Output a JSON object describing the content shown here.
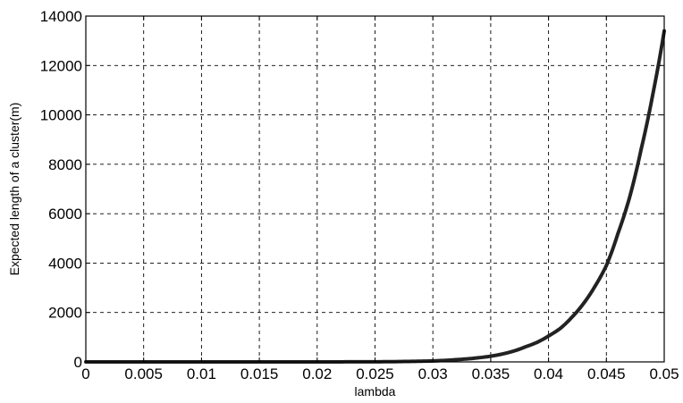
{
  "chart_data": {
    "type": "line",
    "title": "",
    "xlabel": "lambda",
    "ylabel": "Expected length of a cluster(m)",
    "xlim": [
      0,
      0.05
    ],
    "ylim": [
      0,
      14000
    ],
    "grid": true,
    "x_ticks": [
      0,
      0.005,
      0.01,
      0.015,
      0.02,
      0.025,
      0.03,
      0.035,
      0.04,
      0.045,
      0.05
    ],
    "x_tick_labels": [
      "0",
      "0.005",
      "0.01",
      "0.015",
      "0.02",
      "0.025",
      "0.03",
      "0.035",
      "0.04",
      "0.045",
      "0.05"
    ],
    "y_ticks": [
      0,
      2000,
      4000,
      6000,
      8000,
      10000,
      12000,
      14000
    ],
    "y_tick_labels": [
      "0",
      "2000",
      "4000",
      "6000",
      "8000",
      "10000",
      "12000",
      "14000"
    ],
    "series": [
      {
        "color": "#222222",
        "x": [
          0,
          0.005,
          0.01,
          0.015,
          0.02,
          0.025,
          0.028,
          0.03,
          0.032,
          0.034,
          0.035,
          0.036,
          0.037,
          0.038,
          0.039,
          0.04,
          0.041,
          0.042,
          0.043,
          0.044,
          0.045,
          0.046,
          0.047,
          0.048,
          0.049,
          0.05
        ],
        "y": [
          0,
          0,
          0,
          0,
          0,
          5,
          20,
          40,
          90,
          170,
          230,
          320,
          440,
          610,
          790,
          1050,
          1350,
          1800,
          2350,
          3050,
          3900,
          5200,
          6650,
          8600,
          10800,
          13400
        ]
      }
    ]
  }
}
